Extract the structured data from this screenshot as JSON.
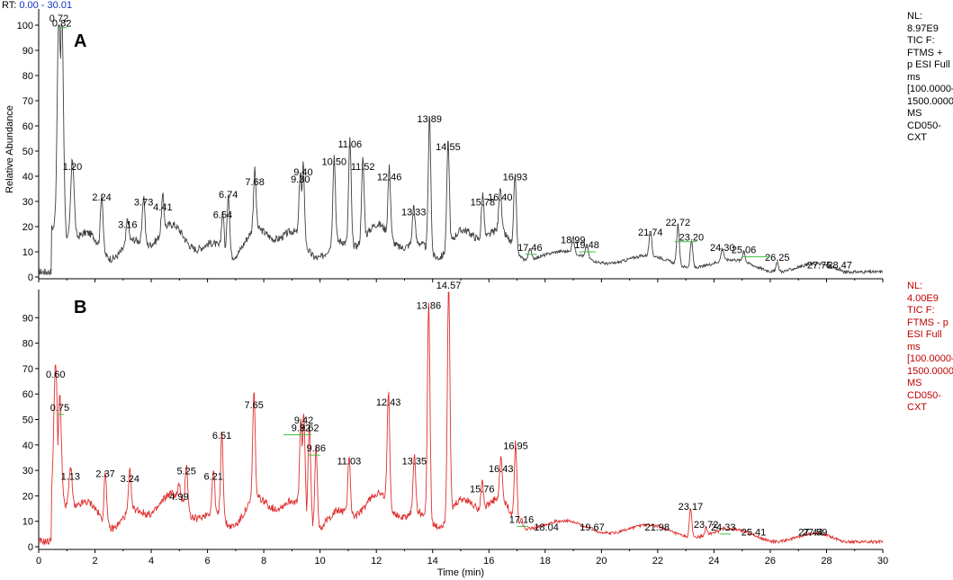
{
  "rt_label": "RT:",
  "rt_range": "0.00 - 30.01",
  "colors": {
    "trace_a": "#404040",
    "trace_b": "#e03030",
    "baseline": "#40c040",
    "info_b": "#c00000",
    "rt_range": "#1030c0"
  },
  "chart_data": [
    {
      "type": "line",
      "panel_label": "A",
      "ylabel": "Relative Abundance",
      "xlabel": "",
      "xlim": [
        0,
        30
      ],
      "ylim": [
        0,
        100
      ],
      "yticks": [
        0,
        10,
        20,
        30,
        40,
        50,
        60,
        70,
        80,
        90,
        100
      ],
      "info": [
        "NL:",
        "8.97E9",
        "TIC F: FTMS +",
        "p ESI Full ms",
        "[100.0000-",
        "1500.0000]",
        "MS",
        "CD050-CXT"
      ],
      "peaks": [
        {
          "x": 0.72,
          "y": 100
        },
        {
          "x": 0.82,
          "y": 98
        },
        {
          "x": 1.2,
          "y": 41
        },
        {
          "x": 2.24,
          "y": 29
        },
        {
          "x": 3.16,
          "y": 18
        },
        {
          "x": 3.73,
          "y": 27
        },
        {
          "x": 4.41,
          "y": 25
        },
        {
          "x": 6.54,
          "y": 22
        },
        {
          "x": 6.74,
          "y": 30
        },
        {
          "x": 7.68,
          "y": 35
        },
        {
          "x": 9.3,
          "y": 36
        },
        {
          "x": 9.4,
          "y": 39
        },
        {
          "x": 10.5,
          "y": 43
        },
        {
          "x": 11.06,
          "y": 50
        },
        {
          "x": 11.52,
          "y": 41
        },
        {
          "x": 12.46,
          "y": 37
        },
        {
          "x": 13.33,
          "y": 23
        },
        {
          "x": 13.89,
          "y": 60
        },
        {
          "x": 14.55,
          "y": 49
        },
        {
          "x": 15.78,
          "y": 27
        },
        {
          "x": 16.4,
          "y": 29
        },
        {
          "x": 16.93,
          "y": 37
        },
        {
          "x": 17.46,
          "y": 9
        },
        {
          "x": 18.99,
          "y": 12
        },
        {
          "x": 19.48,
          "y": 10
        },
        {
          "x": 21.74,
          "y": 15
        },
        {
          "x": 22.72,
          "y": 19
        },
        {
          "x": 23.2,
          "y": 13
        },
        {
          "x": 24.3,
          "y": 9
        },
        {
          "x": 25.06,
          "y": 8
        },
        {
          "x": 26.25,
          "y": 5
        },
        {
          "x": 27.75,
          "y": 2
        },
        {
          "x": 28.47,
          "y": 2
        }
      ]
    },
    {
      "type": "line",
      "panel_label": "B",
      "ylabel": "",
      "xlabel": "Time (min)",
      "xlim": [
        0,
        30
      ],
      "ylim": [
        0,
        100
      ],
      "xticks": [
        0,
        2,
        4,
        6,
        8,
        10,
        12,
        14,
        16,
        18,
        20,
        22,
        24,
        26,
        28,
        30
      ],
      "yticks": [
        0,
        10,
        20,
        30,
        40,
        50,
        60,
        70,
        80,
        90
      ],
      "info": [
        "NL:",
        "4.00E9",
        "TIC F: FTMS - p",
        "ESI Full ms",
        "[100.0000-",
        "1500.0000]",
        "MS",
        "CD050-CXT"
      ],
      "peaks": [
        {
          "x": 0.6,
          "y": 65
        },
        {
          "x": 0.75,
          "y": 52
        },
        {
          "x": 1.13,
          "y": 25
        },
        {
          "x": 2.37,
          "y": 26
        },
        {
          "x": 3.24,
          "y": 24
        },
        {
          "x": 4.99,
          "y": 17
        },
        {
          "x": 5.25,
          "y": 27
        },
        {
          "x": 6.21,
          "y": 25
        },
        {
          "x": 6.51,
          "y": 41
        },
        {
          "x": 7.65,
          "y": 53
        },
        {
          "x": 9.32,
          "y": 44
        },
        {
          "x": 9.42,
          "y": 47
        },
        {
          "x": 9.62,
          "y": 44
        },
        {
          "x": 9.86,
          "y": 36
        },
        {
          "x": 11.03,
          "y": 31
        },
        {
          "x": 12.43,
          "y": 54
        },
        {
          "x": 13.35,
          "y": 31
        },
        {
          "x": 13.86,
          "y": 92
        },
        {
          "x": 14.57,
          "y": 100
        },
        {
          "x": 15.76,
          "y": 20
        },
        {
          "x": 16.43,
          "y": 28
        },
        {
          "x": 16.95,
          "y": 37
        },
        {
          "x": 17.16,
          "y": 8
        },
        {
          "x": 18.04,
          "y": 5
        },
        {
          "x": 19.67,
          "y": 5
        },
        {
          "x": 21.98,
          "y": 5
        },
        {
          "x": 23.17,
          "y": 13
        },
        {
          "x": 23.72,
          "y": 6
        },
        {
          "x": 24.33,
          "y": 5
        },
        {
          "x": 25.41,
          "y": 3
        },
        {
          "x": 27.44,
          "y": 3
        },
        {
          "x": 27.59,
          "y": 3
        }
      ]
    }
  ]
}
